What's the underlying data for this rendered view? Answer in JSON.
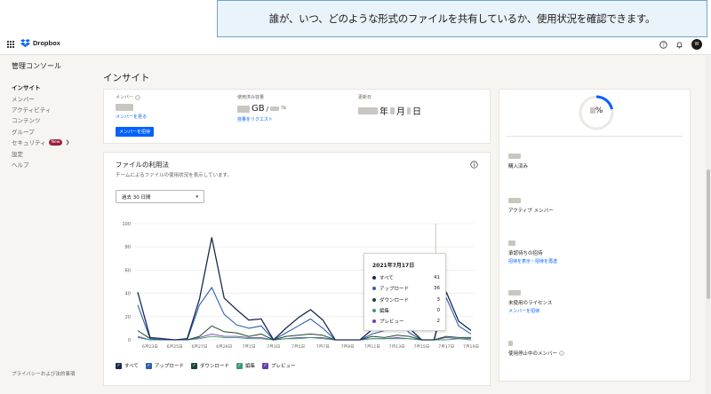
{
  "callout": {
    "text": "誰が、いつ、どのような形式のファイルを共有しているか、使用状況を確認できます。"
  },
  "header": {
    "logo_text": "Dropbox",
    "avatar_initials": "W",
    "icons": [
      "apps-grid-icon",
      "help-icon",
      "bell-icon"
    ]
  },
  "sidebar": {
    "title": "管理コンソール",
    "items": [
      {
        "label": "インサイト",
        "active": true
      },
      {
        "label": "メンバー"
      },
      {
        "label": "アクティビティ"
      },
      {
        "label": "コンテンツ"
      },
      {
        "label": "グループ"
      },
      {
        "label": "セキュリティ",
        "badge": "New",
        "chevron": true
      },
      {
        "label": "設定"
      },
      {
        "label": "ヘルプ"
      }
    ],
    "footer": "プライバシーおよび法的事項"
  },
  "page_title": "インサイト",
  "summary": {
    "members_label": "メンバー",
    "members_link": "メンバーを見る",
    "invite_button": "メンバーを招待",
    "storage_label": "使用済み容量",
    "storage_unit_gb": "GB",
    "storage_sep": "/",
    "storage_unit_tb": "TB",
    "storage_link": "容量をリクエスト",
    "renewal_label": "更新日",
    "renewal_year": "年",
    "renewal_month": "月",
    "renewal_day": "日"
  },
  "files": {
    "title": "ファイルの利用法",
    "subtitle": "チームによるファイルの使用状況を表示しています。",
    "range_select": "過去 30 日間",
    "legend": [
      "すべて",
      "アップロード",
      "ダウンロード",
      "編集",
      "プレビュー"
    ],
    "tooltip": {
      "date": "2021年7月17日",
      "rows": [
        {
          "label": "すべて",
          "value": "41"
        },
        {
          "label": "アップロード",
          "value": "36"
        },
        {
          "label": "ダウンロード",
          "value": "3"
        },
        {
          "label": "編集",
          "value": "0"
        },
        {
          "label": "プレビュー",
          "value": "2"
        }
      ]
    }
  },
  "right_panel": {
    "percent_symbol": "%",
    "stats": [
      {
        "label": "購入済み"
      },
      {
        "label": "アクティブ メンバー"
      },
      {
        "label": "承認待ちの招待",
        "link": "招待を表示・招待を再送"
      },
      {
        "label": "未使用のライセンス",
        "link": "メンバーを招待"
      },
      {
        "label": "使用停止中のメンバー",
        "info_icon": true
      }
    ]
  },
  "colors": {
    "all": "#1a2a4f",
    "upload": "#2f5fb0",
    "download": "#1c4531",
    "edit": "#3a9a74",
    "preview": "#6b3fa6",
    "accent": "#0061fe",
    "badge": "#9b1e3c"
  },
  "chart_data": {
    "type": "line",
    "categories": [
      "6月22日",
      "6月23日",
      "6月24日",
      "6月25日",
      "6月26日",
      "6月27日",
      "6月28日",
      "6月29日",
      "6月30日",
      "7月1日",
      "7月2日",
      "7月3日",
      "7月4日",
      "7月5日",
      "7月6日",
      "7月7日",
      "7月8日",
      "7月9日",
      "7月10日",
      "7月11日",
      "7月12日",
      "7月13日",
      "7月14日",
      "7月15日",
      "7月16日",
      "7月17日",
      "7月18日",
      "7月19日"
    ],
    "tick_labels": [
      "6月23日",
      "6月25日",
      "6月27日",
      "6月29日",
      "7月1日",
      "7月3日",
      "7月5日",
      "7月7日",
      "7月9日",
      "7月11日",
      "7月13日",
      "7月15日",
      "7月17日",
      "7月19日"
    ],
    "ylim": [
      0,
      100
    ],
    "yticks": [
      0,
      20,
      40,
      60,
      80,
      100
    ],
    "series": [
      {
        "name": "すべて",
        "values": [
          41,
          2,
          1,
          0,
          1,
          35,
          88,
          36,
          26,
          17,
          18,
          0,
          10,
          19,
          26,
          17,
          0,
          0,
          0,
          9,
          12,
          26,
          10,
          0,
          0,
          41,
          16,
          8
        ]
      },
      {
        "name": "アップロード",
        "values": [
          30,
          1,
          0,
          0,
          0,
          30,
          45,
          22,
          13,
          10,
          12,
          0,
          6,
          12,
          18,
          10,
          0,
          0,
          0,
          5,
          8,
          18,
          6,
          0,
          0,
          36,
          12,
          5
        ]
      },
      {
        "name": "ダウンロード",
        "values": [
          8,
          1,
          0,
          0,
          0,
          3,
          12,
          7,
          6,
          3,
          5,
          0,
          3,
          4,
          5,
          4,
          0,
          0,
          0,
          3,
          2,
          4,
          3,
          0,
          0,
          3,
          2,
          2
        ]
      },
      {
        "name": "編集",
        "values": [
          2,
          0,
          0,
          0,
          0,
          1,
          3,
          2,
          2,
          1,
          1,
          0,
          1,
          1,
          2,
          1,
          0,
          0,
          0,
          1,
          1,
          1,
          1,
          0,
          0,
          0,
          1,
          0
        ]
      },
      {
        "name": "プレビュー",
        "values": [
          3,
          0,
          0,
          0,
          0,
          2,
          5,
          3,
          3,
          2,
          2,
          0,
          1,
          2,
          2,
          2,
          0,
          0,
          0,
          1,
          1,
          2,
          1,
          0,
          0,
          2,
          1,
          1
        ]
      }
    ],
    "highlight_category": "7月17日"
  }
}
